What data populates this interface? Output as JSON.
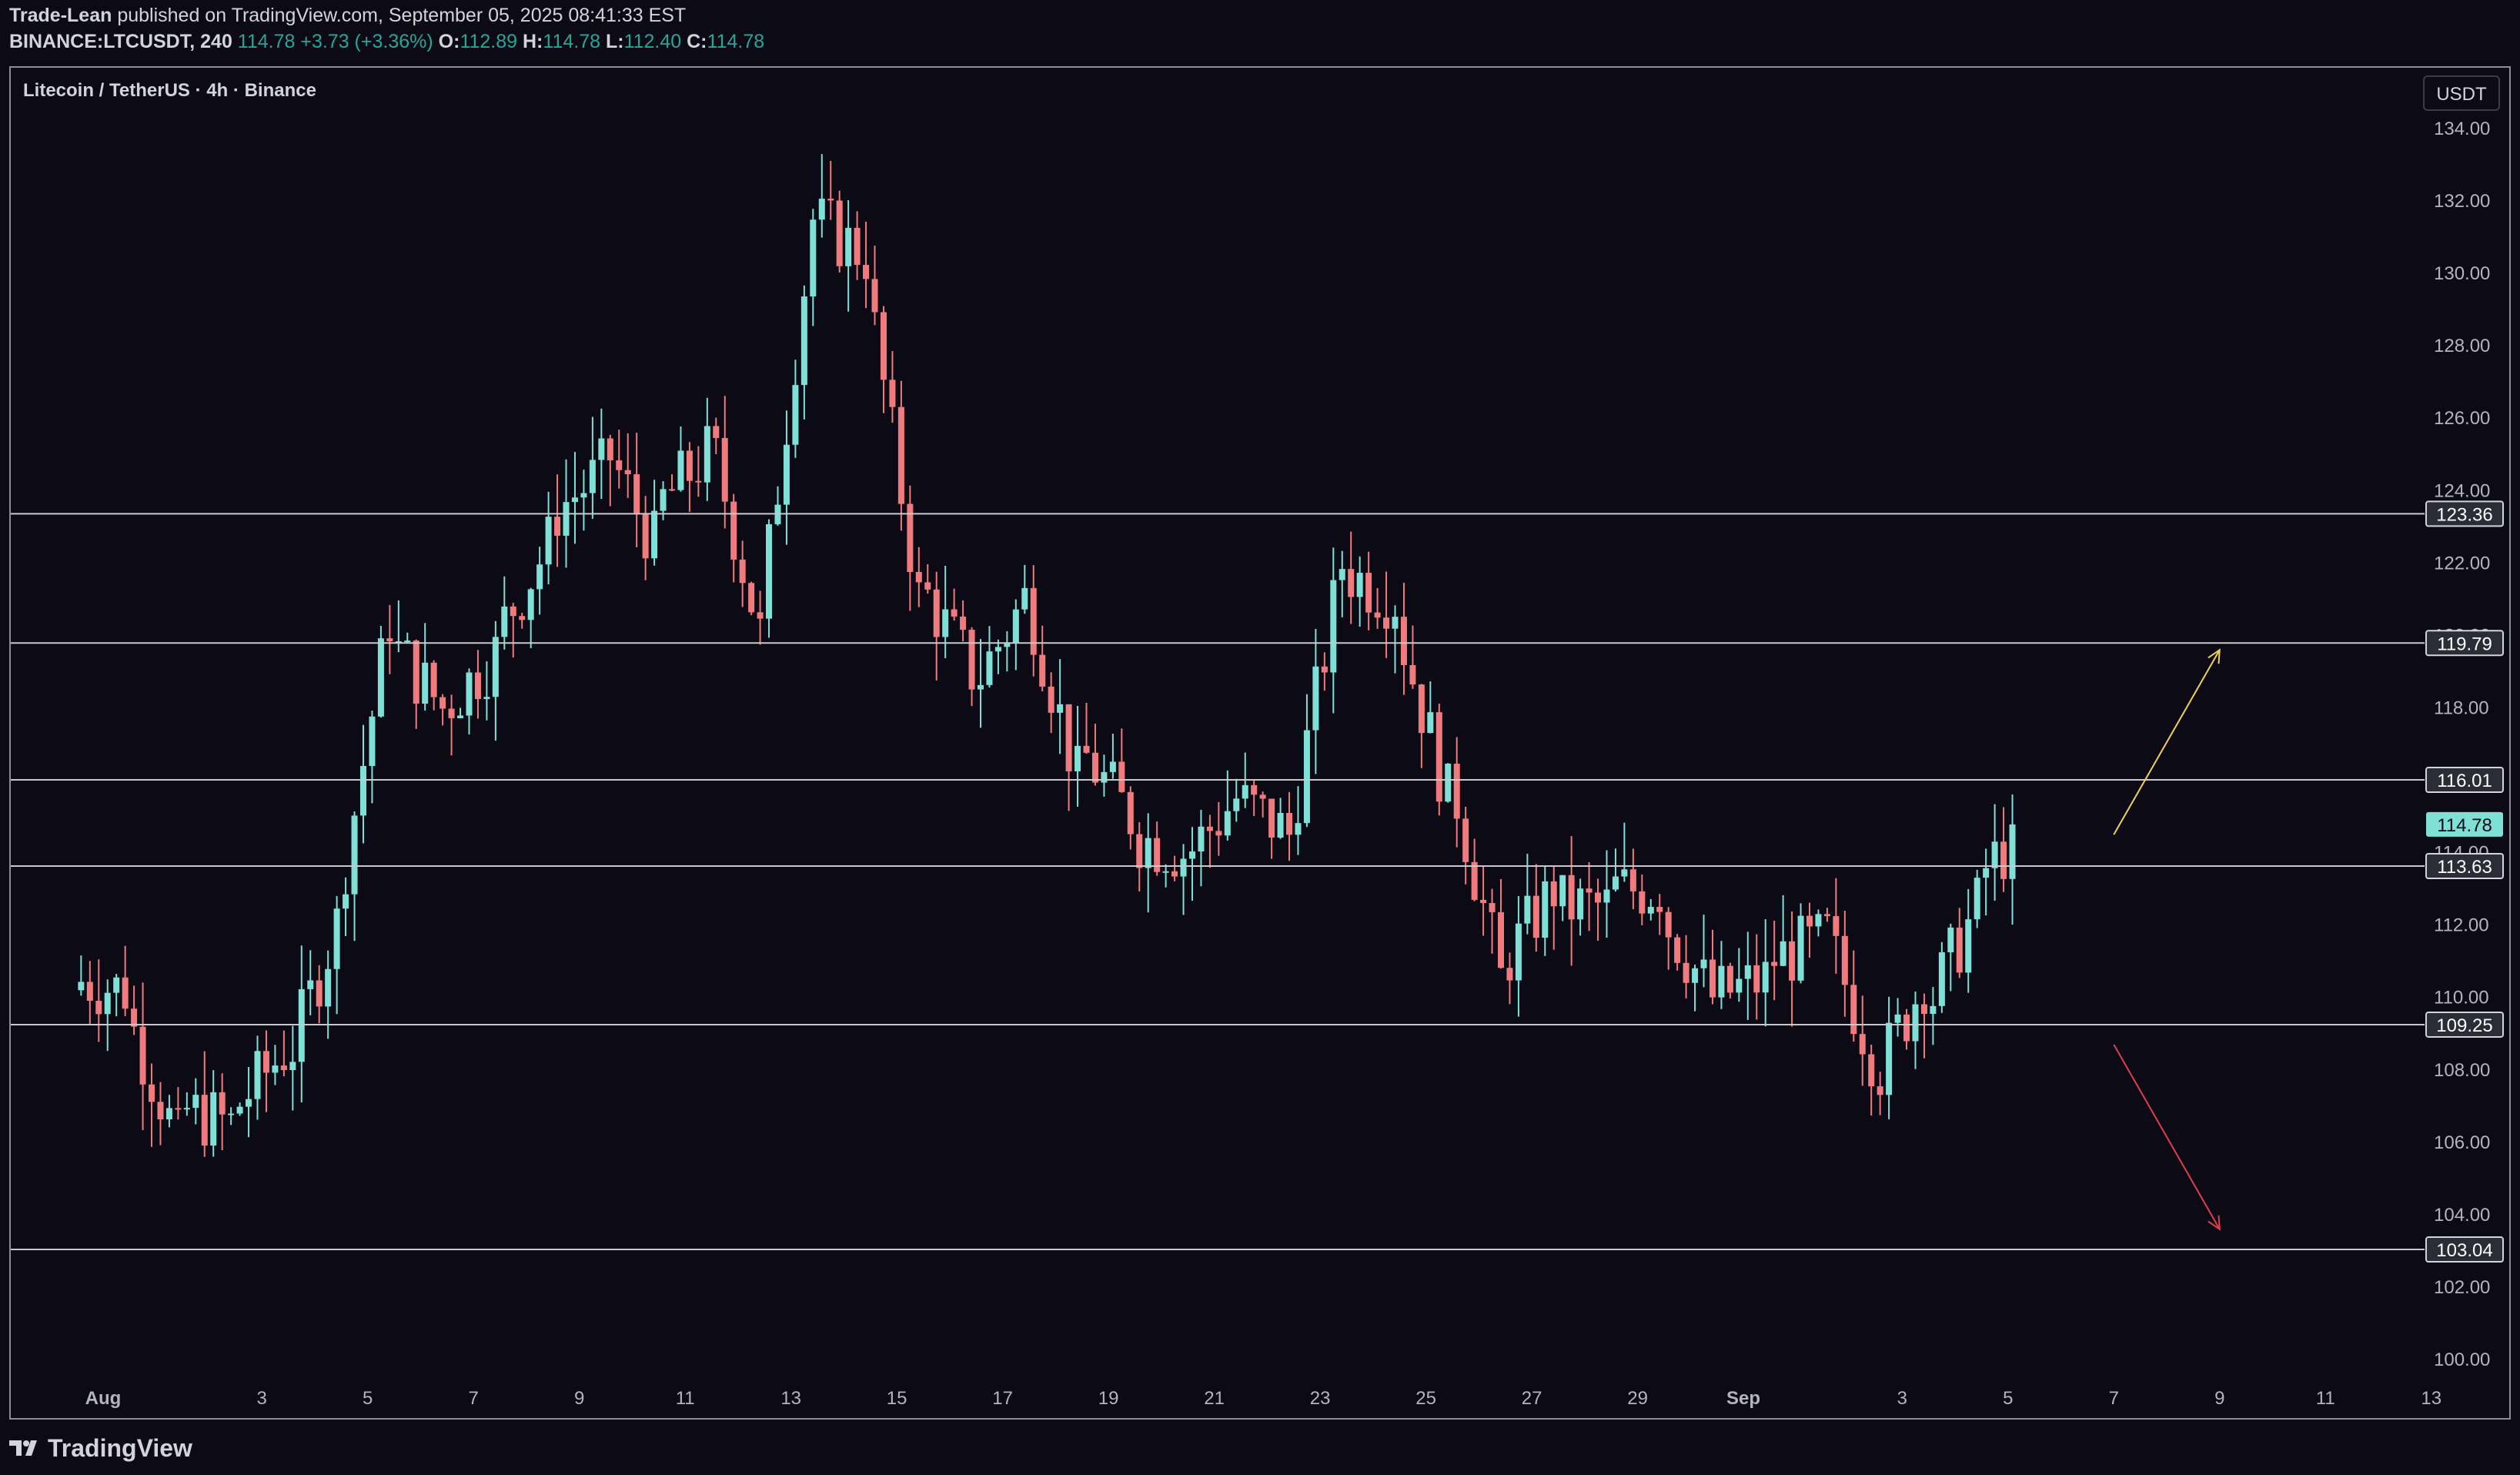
{
  "header": {
    "author": "Trade-Lean",
    "published_text": "published on TradingView.com, September 05, 2025 08:41:33 EST",
    "symbol": "BINANCE:LTCUSDT, 240",
    "last": "114.78",
    "change": "+3.73 (+3.36%)",
    "o_label": "O:",
    "o": "112.89",
    "h_label": "H:",
    "h": "114.78",
    "l_label": "L:",
    "l": "112.40",
    "c_label": "C:",
    "c": "114.78"
  },
  "chart_title": "Litecoin / TetherUS · 4h · Binance",
  "currency_button": "USDT",
  "brand": "TradingView",
  "colors": {
    "background": "#0c0a14",
    "up": "#7ee0d6",
    "down": "#f07b7e",
    "level_line": "#c8c9cc",
    "arrow_up": "#f0d25a",
    "arrow_down": "#e0404a",
    "last_price_badge": "#7ee0d6"
  },
  "chart_data": {
    "type": "candlestick",
    "title": "Litecoin / TetherUS · 4h · Binance",
    "y_axis": {
      "ticks": [
        "134.00",
        "132.00",
        "130.00",
        "128.00",
        "126.00",
        "124.00",
        "122.00",
        "120.00",
        "118.00",
        "116.00",
        "114.00",
        "112.00",
        "110.00",
        "108.00",
        "106.00",
        "104.00",
        "102.00",
        "100.00"
      ],
      "range": [
        99.5,
        135.0
      ]
    },
    "x_axis": {
      "ticks": [
        "Aug",
        "3",
        "5",
        "7",
        "9",
        "11",
        "13",
        "15",
        "17",
        "19",
        "21",
        "23",
        "25",
        "27",
        "29",
        "Sep",
        "3",
        "5",
        "7",
        "9",
        "11",
        "13"
      ],
      "range": [
        "2025-07-31",
        "2025-09-13"
      ]
    },
    "horizontal_levels": [
      {
        "label": "123.36",
        "value": 123.36
      },
      {
        "label": "119.79",
        "value": 119.79
      },
      {
        "label": "116.01",
        "value": 116.01
      },
      {
        "label": "113.63",
        "value": 113.63
      },
      {
        "label": "109.25",
        "value": 109.25
      },
      {
        "label": "103.04",
        "value": 103.04
      }
    ],
    "last_price": {
      "label": "114.78",
      "value": 114.78
    },
    "annotations": [
      {
        "type": "arrow",
        "direction": "up",
        "color": "#f0d25a",
        "from": {
          "date": "2025-09-07",
          "price": 114.5
        },
        "to": {
          "date": "2025-09-09",
          "price": 119.6
        }
      },
      {
        "type": "arrow",
        "direction": "down",
        "color": "#e0404a",
        "from": {
          "date": "2025-09-07",
          "price": 108.7
        },
        "to": {
          "date": "2025-09-09",
          "price": 103.6
        }
      }
    ],
    "daily_closes": [
      {
        "date": "2025-07-31",
        "close": 110.2
      },
      {
        "date": "2025-08-01",
        "close": 106.0
      },
      {
        "date": "2025-08-02",
        "close": 106.5
      },
      {
        "date": "2025-08-03",
        "close": 108.5
      },
      {
        "date": "2025-08-04",
        "close": 112.0
      },
      {
        "date": "2025-08-05",
        "close": 120.5
      },
      {
        "date": "2025-08-06",
        "close": 118.0
      },
      {
        "date": "2025-08-07",
        "close": 119.5
      },
      {
        "date": "2025-08-08",
        "close": 122.5
      },
      {
        "date": "2025-08-09",
        "close": 124.5
      },
      {
        "date": "2025-08-10",
        "close": 122.5
      },
      {
        "date": "2025-08-11",
        "close": 125.0
      },
      {
        "date": "2025-08-12",
        "close": 120.0
      },
      {
        "date": "2025-08-13",
        "close": 131.5
      },
      {
        "date": "2025-08-14",
        "close": 130.5
      },
      {
        "date": "2025-08-15",
        "close": 121.0
      },
      {
        "date": "2025-08-16",
        "close": 119.0
      },
      {
        "date": "2025-08-17",
        "close": 121.0
      },
      {
        "date": "2025-08-18",
        "close": 116.0
      },
      {
        "date": "2025-08-19",
        "close": 115.0
      },
      {
        "date": "2025-08-20",
        "close": 114.0
      },
      {
        "date": "2025-08-21",
        "close": 115.5
      },
      {
        "date": "2025-08-22",
        "close": 114.5
      },
      {
        "date": "2025-08-23",
        "close": 122.0
      },
      {
        "date": "2025-08-24",
        "close": 121.0
      },
      {
        "date": "2025-08-25",
        "close": 115.5
      },
      {
        "date": "2025-08-26",
        "close": 110.5
      },
      {
        "date": "2025-08-27",
        "close": 113.0
      },
      {
        "date": "2025-08-28",
        "close": 112.5
      },
      {
        "date": "2025-08-29",
        "close": 113.0
      },
      {
        "date": "2025-08-30",
        "close": 110.0
      },
      {
        "date": "2025-08-31",
        "close": 110.5
      },
      {
        "date": "2025-09-01",
        "close": 111.5
      },
      {
        "date": "2025-09-02",
        "close": 108.5
      },
      {
        "date": "2025-09-03",
        "close": 110.5
      },
      {
        "date": "2025-09-04",
        "close": 112.5
      },
      {
        "date": "2025-09-05",
        "close": 114.78
      }
    ]
  }
}
